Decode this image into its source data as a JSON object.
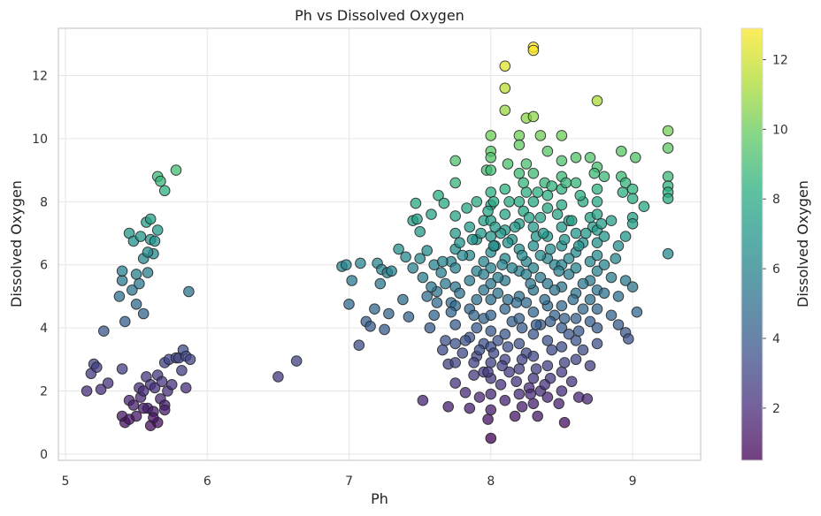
{
  "chart_data": {
    "type": "scatter",
    "title": "Ph vs Dissolved Oxygen",
    "xlabel": "Ph",
    "ylabel": "Dissolved Oxygen",
    "xlim": [
      4.95,
      9.48
    ],
    "ylim": [
      -0.2,
      13.5
    ],
    "xticks": [
      5,
      6,
      7,
      8,
      9
    ],
    "yticks": [
      0,
      2,
      4,
      6,
      8,
      10,
      12
    ],
    "grid": true,
    "colormap": "viridis",
    "color_by": "Dissolved Oxygen",
    "colorbar": {
      "label": "Dissolved Oxygen",
      "range": [
        0.5,
        12.9
      ],
      "ticks": [
        2,
        4,
        6,
        8,
        10,
        12
      ]
    },
    "points": [
      [
        5.15,
        2.0
      ],
      [
        5.18,
        2.55
      ],
      [
        5.2,
        2.85
      ],
      [
        5.22,
        2.75
      ],
      [
        5.25,
        2.05
      ],
      [
        5.27,
        3.9
      ],
      [
        5.3,
        2.25
      ],
      [
        5.38,
        5.0
      ],
      [
        5.4,
        5.5
      ],
      [
        5.4,
        5.8
      ],
      [
        5.42,
        4.2
      ],
      [
        5.45,
        7.0
      ],
      [
        5.47,
        5.2
      ],
      [
        5.48,
        6.75
      ],
      [
        5.5,
        5.7
      ],
      [
        5.5,
        4.75
      ],
      [
        5.52,
        5.4
      ],
      [
        5.53,
        6.9
      ],
      [
        5.55,
        6.2
      ],
      [
        5.55,
        4.45
      ],
      [
        5.57,
        7.35
      ],
      [
        5.58,
        5.75
      ],
      [
        5.6,
        7.45
      ],
      [
        5.6,
        6.8
      ],
      [
        5.62,
        6.35
      ],
      [
        5.63,
        6.75
      ],
      [
        5.65,
        7.1
      ],
      [
        5.58,
        6.4
      ],
      [
        5.65,
        8.8
      ],
      [
        5.67,
        8.65
      ],
      [
        5.7,
        8.35
      ],
      [
        5.78,
        9.0
      ],
      [
        5.87,
        5.15
      ],
      [
        5.4,
        2.7
      ],
      [
        5.4,
        1.2
      ],
      [
        5.42,
        1.0
      ],
      [
        5.45,
        1.1
      ],
      [
        5.45,
        1.7
      ],
      [
        5.48,
        1.55
      ],
      [
        5.5,
        1.2
      ],
      [
        5.52,
        2.1
      ],
      [
        5.53,
        1.8
      ],
      [
        5.55,
        2.0
      ],
      [
        5.57,
        2.45
      ],
      [
        5.58,
        1.45
      ],
      [
        5.6,
        2.2
      ],
      [
        5.6,
        0.9
      ],
      [
        5.62,
        1.35
      ],
      [
        5.63,
        2.1
      ],
      [
        5.65,
        2.5
      ],
      [
        5.65,
        1.0
      ],
      [
        5.67,
        1.75
      ],
      [
        5.68,
        2.3
      ],
      [
        5.7,
        1.55
      ],
      [
        5.7,
        2.9
      ],
      [
        5.72,
        2.0
      ],
      [
        5.73,
        3.0
      ],
      [
        5.75,
        2.2
      ],
      [
        5.78,
        3.05
      ],
      [
        5.8,
        3.05
      ],
      [
        5.82,
        2.65
      ],
      [
        5.83,
        3.3
      ],
      [
        5.85,
        3.1
      ],
      [
        5.85,
        2.1
      ],
      [
        5.88,
        3.0
      ],
      [
        5.7,
        1.4
      ],
      [
        5.62,
        1.15
      ],
      [
        5.55,
        1.45
      ],
      [
        6.5,
        2.45
      ],
      [
        6.63,
        2.95
      ],
      [
        6.95,
        5.95
      ],
      [
        6.98,
        6.0
      ],
      [
        7.0,
        4.75
      ],
      [
        7.02,
        5.5
      ],
      [
        7.07,
        3.45
      ],
      [
        7.08,
        6.05
      ],
      [
        7.12,
        4.2
      ],
      [
        7.15,
        4.05
      ],
      [
        7.18,
        4.6
      ],
      [
        7.2,
        6.05
      ],
      [
        7.22,
        5.4
      ],
      [
        7.23,
        5.85
      ],
      [
        7.25,
        3.95
      ],
      [
        7.27,
        5.75
      ],
      [
        7.28,
        4.45
      ],
      [
        7.3,
        5.8
      ],
      [
        7.35,
        6.5
      ],
      [
        7.38,
        4.9
      ],
      [
        7.4,
        6.25
      ],
      [
        7.42,
        4.35
      ],
      [
        7.45,
        5.9
      ],
      [
        7.45,
        7.4
      ],
      [
        7.47,
        7.95
      ],
      [
        7.48,
        7.45
      ],
      [
        7.5,
        7.05
      ],
      [
        7.5,
        6.2
      ],
      [
        7.52,
        5.6
      ],
      [
        7.52,
        1.7
      ],
      [
        7.55,
        6.45
      ],
      [
        7.57,
        4.0
      ],
      [
        7.58,
        7.6
      ],
      [
        7.6,
        6.0
      ],
      [
        7.6,
        4.4
      ],
      [
        7.62,
        5.15
      ],
      [
        7.63,
        8.2
      ],
      [
        7.65,
        5.75
      ],
      [
        7.67,
        7.95
      ],
      [
        7.68,
        3.6
      ],
      [
        7.7,
        2.85
      ],
      [
        7.7,
        1.5
      ],
      [
        7.72,
        6.1
      ],
      [
        7.72,
        4.8
      ],
      [
        7.75,
        9.3
      ],
      [
        7.75,
        8.6
      ],
      [
        7.75,
        7.55
      ],
      [
        7.75,
        7.0
      ],
      [
        7.75,
        6.5
      ],
      [
        7.75,
        5.9
      ],
      [
        7.75,
        5.3
      ],
      [
        7.75,
        4.7
      ],
      [
        7.75,
        4.1
      ],
      [
        7.75,
        3.5
      ],
      [
        7.75,
        2.9
      ],
      [
        7.75,
        2.25
      ],
      [
        7.78,
        6.7
      ],
      [
        7.78,
        5.1
      ],
      [
        7.8,
        3.2
      ],
      [
        7.82,
        1.95
      ],
      [
        7.85,
        7.2
      ],
      [
        7.85,
        6.3
      ],
      [
        7.85,
        5.5
      ],
      [
        7.85,
        4.6
      ],
      [
        7.85,
        3.7
      ],
      [
        7.85,
        1.45
      ],
      [
        7.88,
        2.5
      ],
      [
        7.9,
        8.0
      ],
      [
        7.9,
        6.8
      ],
      [
        7.9,
        5.8
      ],
      [
        7.9,
        4.9
      ],
      [
        7.9,
        4.0
      ],
      [
        7.9,
        3.1
      ],
      [
        7.92,
        1.8
      ],
      [
        7.95,
        7.4
      ],
      [
        7.95,
        6.1
      ],
      [
        7.95,
        5.2
      ],
      [
        7.95,
        4.3
      ],
      [
        7.95,
        3.5
      ],
      [
        7.95,
        2.6
      ],
      [
        7.97,
        9.0
      ],
      [
        7.98,
        1.1
      ],
      [
        8.0,
        10.1
      ],
      [
        8.0,
        9.6
      ],
      [
        8.0,
        9.4
      ],
      [
        8.0,
        9.0
      ],
      [
        8.0,
        8.3
      ],
      [
        8.0,
        7.9
      ],
      [
        8.0,
        7.4
      ],
      [
        8.0,
        6.9
      ],
      [
        8.0,
        6.4
      ],
      [
        8.0,
        5.9
      ],
      [
        8.0,
        5.4
      ],
      [
        8.0,
        4.9
      ],
      [
        8.0,
        4.4
      ],
      [
        8.0,
        3.9
      ],
      [
        8.0,
        3.4
      ],
      [
        8.0,
        2.9
      ],
      [
        8.0,
        2.4
      ],
      [
        8.0,
        1.9
      ],
      [
        8.0,
        1.4
      ],
      [
        8.0,
        0.5
      ],
      [
        8.02,
        8.0
      ],
      [
        8.03,
        6.6
      ],
      [
        8.05,
        5.1
      ],
      [
        8.05,
        3.6
      ],
      [
        8.07,
        2.2
      ],
      [
        8.1,
        12.3
      ],
      [
        8.1,
        11.6
      ],
      [
        8.1,
        10.9
      ],
      [
        8.1,
        8.4
      ],
      [
        8.1,
        7.6
      ],
      [
        8.1,
        7.1
      ],
      [
        8.1,
        6.2
      ],
      [
        8.1,
        5.5
      ],
      [
        8.1,
        4.6
      ],
      [
        8.1,
        3.8
      ],
      [
        8.1,
        3.0
      ],
      [
        8.1,
        1.7
      ],
      [
        8.12,
        9.2
      ],
      [
        8.13,
        2.6
      ],
      [
        8.15,
        6.8
      ],
      [
        8.15,
        4.2
      ],
      [
        8.17,
        1.2
      ],
      [
        8.2,
        10.1
      ],
      [
        8.2,
        9.8
      ],
      [
        8.2,
        8.9
      ],
      [
        8.2,
        8.0
      ],
      [
        8.2,
        7.3
      ],
      [
        8.2,
        6.5
      ],
      [
        8.2,
        5.8
      ],
      [
        8.2,
        5.0
      ],
      [
        8.2,
        4.3
      ],
      [
        8.2,
        3.5
      ],
      [
        8.2,
        2.7
      ],
      [
        8.2,
        1.9
      ],
      [
        8.22,
        1.5
      ],
      [
        8.23,
        7.7
      ],
      [
        8.25,
        10.65
      ],
      [
        8.25,
        9.2
      ],
      [
        8.25,
        8.3
      ],
      [
        8.25,
        6.1
      ],
      [
        8.25,
        4.8
      ],
      [
        8.25,
        3.2
      ],
      [
        8.27,
        2.1
      ],
      [
        8.3,
        12.9
      ],
      [
        8.3,
        12.8
      ],
      [
        8.3,
        10.7
      ],
      [
        8.3,
        8.9
      ],
      [
        8.3,
        8.0
      ],
      [
        8.3,
        7.2
      ],
      [
        8.3,
        6.6
      ],
      [
        8.3,
        5.9
      ],
      [
        8.3,
        5.2
      ],
      [
        8.3,
        4.5
      ],
      [
        8.3,
        3.8
      ],
      [
        8.3,
        3.1
      ],
      [
        8.3,
        2.4
      ],
      [
        8.3,
        1.6
      ],
      [
        8.33,
        1.2
      ],
      [
        8.35,
        10.1
      ],
      [
        8.35,
        7.5
      ],
      [
        8.35,
        5.6
      ],
      [
        8.35,
        4.1
      ],
      [
        8.35,
        2.0
      ],
      [
        8.38,
        8.6
      ],
      [
        8.4,
        9.6
      ],
      [
        8.4,
        8.2
      ],
      [
        8.4,
        7.8
      ],
      [
        8.4,
        6.9
      ],
      [
        8.4,
        6.2
      ],
      [
        8.4,
        5.4
      ],
      [
        8.4,
        4.7
      ],
      [
        8.4,
        3.6
      ],
      [
        8.4,
        2.8
      ],
      [
        8.4,
        1.8
      ],
      [
        8.43,
        3.3
      ],
      [
        8.45,
        6.0
      ],
      [
        8.45,
        4.4
      ],
      [
        8.48,
        1.6
      ],
      [
        8.5,
        10.1
      ],
      [
        8.5,
        9.3
      ],
      [
        8.5,
        8.8
      ],
      [
        8.5,
        8.4
      ],
      [
        8.5,
        7.9
      ],
      [
        8.5,
        7.2
      ],
      [
        8.5,
        6.6
      ],
      [
        8.5,
        6.0
      ],
      [
        8.5,
        5.3
      ],
      [
        8.5,
        4.7
      ],
      [
        8.5,
        4.0
      ],
      [
        8.5,
        3.4
      ],
      [
        8.5,
        2.6
      ],
      [
        8.5,
        2.0
      ],
      [
        8.52,
        1.0
      ],
      [
        8.55,
        7.4
      ],
      [
        8.55,
        5.7
      ],
      [
        8.55,
        3.8
      ],
      [
        8.57,
        2.3
      ],
      [
        8.6,
        9.4
      ],
      [
        8.6,
        8.6
      ],
      [
        8.6,
        7.0
      ],
      [
        8.6,
        6.4
      ],
      [
        8.6,
        5.9
      ],
      [
        8.6,
        5.1
      ],
      [
        8.6,
        4.3
      ],
      [
        8.6,
        3.6
      ],
      [
        8.6,
        3.0
      ],
      [
        8.62,
        1.8
      ],
      [
        8.65,
        8.0
      ],
      [
        8.65,
        6.7
      ],
      [
        8.65,
        4.6
      ],
      [
        8.65,
        3.3
      ],
      [
        8.68,
        1.75
      ],
      [
        8.7,
        9.4
      ],
      [
        8.7,
        7.5
      ],
      [
        8.7,
        6.1
      ],
      [
        8.7,
        5.5
      ],
      [
        8.7,
        4.9
      ],
      [
        8.7,
        4.2
      ],
      [
        8.7,
        2.8
      ],
      [
        8.72,
        7.2
      ],
      [
        8.75,
        11.2
      ],
      [
        8.75,
        9.1
      ],
      [
        8.75,
        8.4
      ],
      [
        8.75,
        8.0
      ],
      [
        8.75,
        7.6
      ],
      [
        8.75,
        7.1
      ],
      [
        8.75,
        6.7
      ],
      [
        8.75,
        6.3
      ],
      [
        8.75,
        5.8
      ],
      [
        8.75,
        5.2
      ],
      [
        8.75,
        4.6
      ],
      [
        8.75,
        4.0
      ],
      [
        8.75,
        3.5
      ],
      [
        8.8,
        8.8
      ],
      [
        8.8,
        6.9
      ],
      [
        8.8,
        6.0
      ],
      [
        8.8,
        5.1
      ],
      [
        8.85,
        7.4
      ],
      [
        8.85,
        5.6
      ],
      [
        8.85,
        4.4
      ],
      [
        8.88,
        6.2
      ],
      [
        8.9,
        6.6
      ],
      [
        8.9,
        5.0
      ],
      [
        8.9,
        4.1
      ],
      [
        8.92,
        9.6
      ],
      [
        8.92,
        8.8
      ],
      [
        8.93,
        8.3
      ],
      [
        8.95,
        8.6
      ],
      [
        8.95,
        6.9
      ],
      [
        8.95,
        5.5
      ],
      [
        8.95,
        3.85
      ],
      [
        8.97,
        3.65
      ],
      [
        9.0,
        8.4
      ],
      [
        9.0,
        8.1
      ],
      [
        9.0,
        7.5
      ],
      [
        9.0,
        7.3
      ],
      [
        9.0,
        5.3
      ],
      [
        9.02,
        9.4
      ],
      [
        9.03,
        4.5
      ],
      [
        9.08,
        7.85
      ],
      [
        9.25,
        10.25
      ],
      [
        9.25,
        9.7
      ],
      [
        9.25,
        8.8
      ],
      [
        9.25,
        8.5
      ],
      [
        9.25,
        8.3
      ],
      [
        9.25,
        8.1
      ],
      [
        9.25,
        6.35
      ],
      [
        8.05,
        5.6
      ],
      [
        8.15,
        5.9
      ],
      [
        8.25,
        5.7
      ],
      [
        8.35,
        6.3
      ],
      [
        8.45,
        5.2
      ],
      [
        8.55,
        6.2
      ],
      [
        8.65,
        5.4
      ],
      [
        7.95,
        5.7
      ],
      [
        8.08,
        6.0
      ],
      [
        8.18,
        4.8
      ],
      [
        8.28,
        5.4
      ],
      [
        8.38,
        4.9
      ],
      [
        8.48,
        5.8
      ],
      [
        8.58,
        4.9
      ],
      [
        7.88,
        4.4
      ],
      [
        8.12,
        4.9
      ],
      [
        8.22,
        4.0
      ],
      [
        8.32,
        4.1
      ],
      [
        8.42,
        4.2
      ],
      [
        8.52,
        4.3
      ],
      [
        8.62,
        3.9
      ],
      [
        7.82,
        3.6
      ],
      [
        7.92,
        3.3
      ],
      [
        8.02,
        3.2
      ],
      [
        8.12,
        3.4
      ],
      [
        8.22,
        3.0
      ],
      [
        8.32,
        2.7
      ],
      [
        8.42,
        2.4
      ],
      [
        8.52,
        2.9
      ],
      [
        7.88,
        2.9
      ],
      [
        7.98,
        2.6
      ],
      [
        8.08,
        2.8
      ],
      [
        8.18,
        2.3
      ],
      [
        8.28,
        1.9
      ],
      [
        8.38,
        2.2
      ],
      [
        7.68,
        5.4
      ],
      [
        7.72,
        4.5
      ],
      [
        7.66,
        6.1
      ],
      [
        7.62,
        4.8
      ],
      [
        7.58,
        5.3
      ],
      [
        7.55,
        5.0
      ],
      [
        7.66,
        3.3
      ],
      [
        8.02,
        6.6
      ],
      [
        8.12,
        6.7
      ],
      [
        8.22,
        6.3
      ],
      [
        8.32,
        6.9
      ],
      [
        8.42,
        6.5
      ],
      [
        8.52,
        6.8
      ],
      [
        8.62,
        6.6
      ],
      [
        8.07,
        7.0
      ],
      [
        8.17,
        7.2
      ],
      [
        8.27,
        7.5
      ],
      [
        8.37,
        7.0
      ],
      [
        8.47,
        7.6
      ],
      [
        8.57,
        7.4
      ],
      [
        8.67,
        7.0
      ],
      [
        7.8,
        6.3
      ],
      [
        7.83,
        7.8
      ],
      [
        7.87,
        6.8
      ],
      [
        7.93,
        7.0
      ],
      [
        7.98,
        7.7
      ],
      [
        8.03,
        7.2
      ],
      [
        8.13,
        8.0
      ],
      [
        8.23,
        8.6
      ],
      [
        8.33,
        8.3
      ],
      [
        8.43,
        8.5
      ],
      [
        8.53,
        8.6
      ],
      [
        8.63,
        8.2
      ],
      [
        8.73,
        8.9
      ],
      [
        8.78,
        7.3
      ]
    ]
  }
}
